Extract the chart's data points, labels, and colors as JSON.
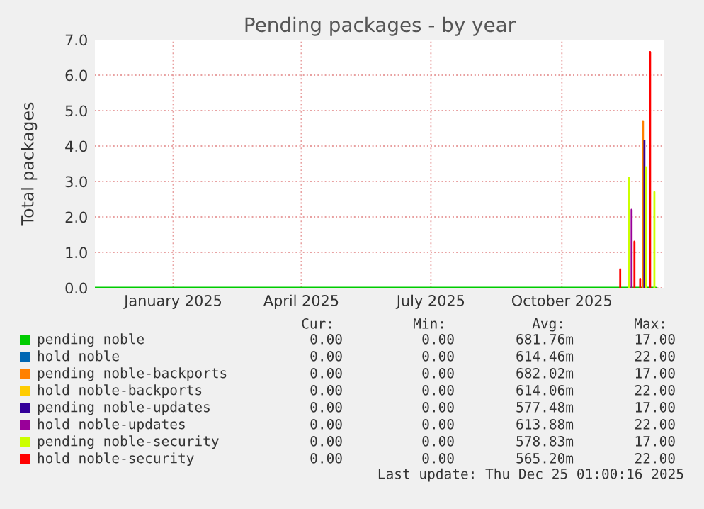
{
  "chart_data": {
    "type": "line",
    "title": "Pending packages - by year",
    "ylabel": "Total packages",
    "xlim": [
      "2024-11-22",
      "2025-12-27"
    ],
    "xticks": [
      {
        "value": "2025-01-16",
        "label": "January 2025"
      },
      {
        "value": "2025-04-16",
        "label": "April 2025"
      },
      {
        "value": "2025-07-16",
        "label": "July 2025"
      },
      {
        "value": "2025-10-16",
        "label": "October 2025"
      }
    ],
    "ylim": [
      0,
      7
    ],
    "yticks": [
      {
        "value": 0,
        "label": "0.0"
      },
      {
        "value": 1,
        "label": "1.0"
      },
      {
        "value": 2,
        "label": "2.0"
      },
      {
        "value": 3,
        "label": "3.0"
      },
      {
        "value": 4,
        "label": "4.0"
      },
      {
        "value": 5,
        "label": "5.0"
      },
      {
        "value": 6,
        "label": "6.0"
      },
      {
        "value": 7,
        "label": "7.0"
      }
    ],
    "grid": true,
    "legend": "bottom",
    "marker": "none",
    "line_style": "solid",
    "series": [
      {
        "name": "pending_noble",
        "color": "#00cc00",
        "x": [
          "2024-11-22",
          "2025-12-21"
        ],
        "values": [
          0,
          0
        ]
      },
      {
        "name": "hold_noble",
        "color": "#0066b3"
      },
      {
        "name": "pending_noble-backports",
        "color": "#ff8000",
        "x": [
          "2025-12-12",
          "2025-12-12"
        ],
        "values": [
          0,
          4.7
        ]
      },
      {
        "name": "hold_noble-backports",
        "color": "#ffcc00"
      },
      {
        "name": "pending_noble-updates",
        "color": "#330099",
        "x": [
          "2025-12-13",
          "2025-12-13"
        ],
        "values": [
          0,
          4.15
        ]
      },
      {
        "name": "hold_noble-updates",
        "color": "#990099",
        "x": [
          "2025-12-04",
          "2025-12-04"
        ],
        "values": [
          0,
          2.2
        ]
      },
      {
        "name": "pending_noble-security",
        "color": "#ccff00",
        "x": [
          "2025-12-02",
          "2025-12-02",
          null,
          "2025-12-14",
          "2025-12-14",
          null,
          "2025-12-20",
          "2025-12-20"
        ],
        "values": [
          0,
          3.1,
          null,
          0,
          3.4,
          null,
          0,
          2.7
        ]
      },
      {
        "name": "hold_noble-security",
        "color": "#ff0000",
        "x": [
          "2025-11-26",
          "2025-11-26",
          null,
          "2025-12-06",
          "2025-12-06",
          null,
          "2025-12-10",
          "2025-12-10",
          null,
          "2025-12-17",
          "2025-12-17"
        ],
        "values": [
          0,
          0.52,
          null,
          0,
          1.3,
          null,
          0,
          0.25,
          null,
          0,
          6.65
        ]
      }
    ],
    "annotations": [
      "Cur:",
      "Min:",
      "Avg:",
      "Max:",
      "0.00",
      "0.00",
      "681.76m",
      "17.00",
      "0.00",
      "0.00",
      "614.46m",
      "22.00",
      "0.00",
      "0.00",
      "682.02m",
      "17.00",
      "0.00",
      "0.00",
      "614.06m",
      "22.00",
      "0.00",
      "0.00",
      "577.48m",
      "17.00",
      "0.00",
      "0.00",
      "613.88m",
      "22.00",
      "0.00",
      "0.00",
      "578.83m",
      "17.00",
      "0.00",
      "0.00",
      "565.20m",
      "22.00",
      "Last update: Thu Dec 25 01:00:16 2025"
    ]
  }
}
